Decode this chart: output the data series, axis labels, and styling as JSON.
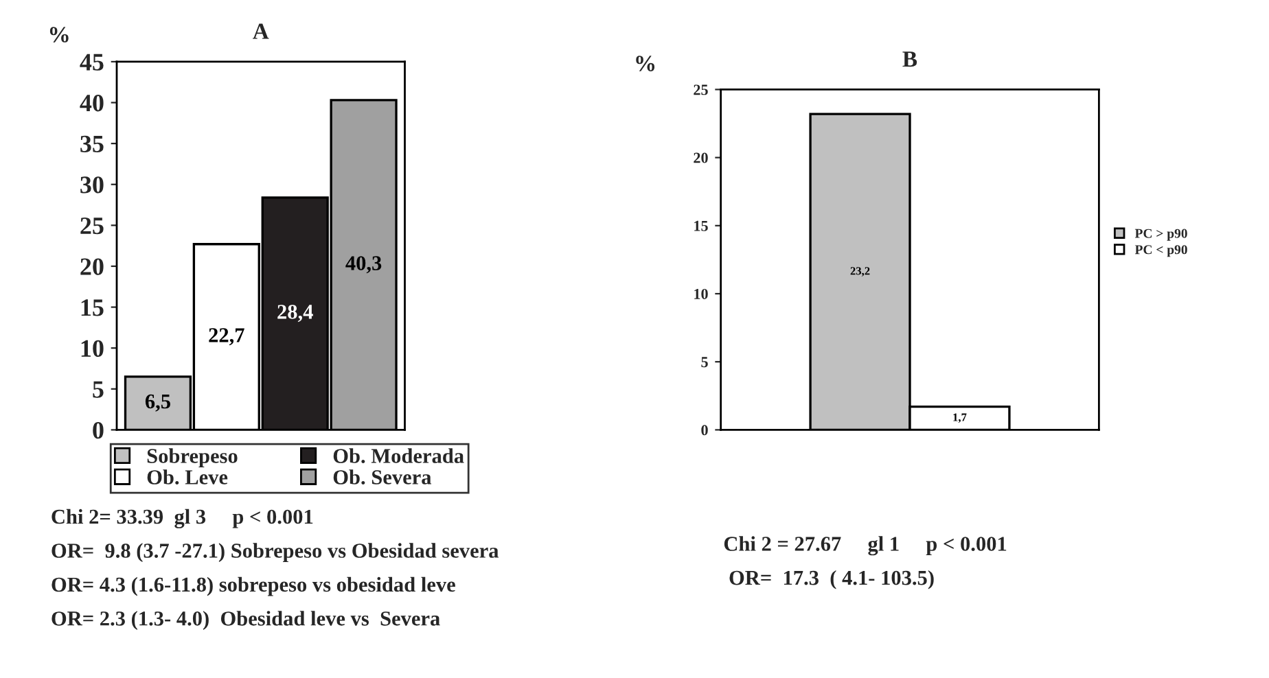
{
  "chart_data": [
    {
      "type": "bar",
      "title": "A",
      "ylabel": "%",
      "categories": [
        null,
        null,
        null,
        null
      ],
      "series": [
        {
          "name": "Sobrepeso",
          "color": "#c0c0c0",
          "values": [
            6.5,
            null,
            null,
            null
          ],
          "value_labels": [
            "6,5",
            null,
            null,
            null
          ]
        },
        {
          "name": "Ob. Leve",
          "color": "#ffffff",
          "values": [
            null,
            22.7,
            null,
            null
          ],
          "value_labels": [
            null,
            "22,7",
            null,
            null
          ]
        },
        {
          "name": "Ob. Moderada",
          "color": "#231f20",
          "values": [
            null,
            null,
            28.4,
            null
          ],
          "value_labels": [
            null,
            null,
            "28,4",
            null
          ]
        },
        {
          "name": "Ob. Severa",
          "color": "#a0a0a0",
          "values": [
            null,
            null,
            null,
            40.3
          ],
          "value_labels": [
            null,
            null,
            null,
            "40,3"
          ]
        }
      ],
      "ylim": [
        0,
        45
      ],
      "yticks": [
        0,
        5,
        10,
        15,
        20,
        25,
        30,
        35,
        40,
        45
      ],
      "legend": "bottom",
      "grid": false,
      "annotations": [
        "Chi 2= 33.39  gl 3     p < 0.001",
        "OR=  9.8 (3.7 -27.1) Sobrepeso vs Obesidad severa",
        "OR= 4.3 (1.6-11.8) sobrepeso vs obesidad leve",
        "OR= 2.3 (1.3- 4.0)  Obesidad leve vs  Severa"
      ]
    },
    {
      "type": "bar",
      "title": "B",
      "ylabel": "%",
      "categories": [
        null,
        null
      ],
      "series": [
        {
          "name": "PC > p90",
          "color": "#c0c0c0",
          "values": [
            23.2,
            null
          ],
          "value_labels": [
            "23,2",
            null
          ]
        },
        {
          "name": "PC < p90",
          "color": "#ffffff",
          "values": [
            null,
            1.7
          ],
          "value_labels": [
            null,
            "1,7"
          ]
        }
      ],
      "ylim": [
        0,
        25
      ],
      "yticks": [
        0,
        5,
        10,
        15,
        20,
        25
      ],
      "legend": "right",
      "grid": false,
      "annotations": [
        "Chi 2 = 27.67     gl 1     p < 0.001",
        " OR=  17.3  ( 4.1- 103.5)"
      ]
    }
  ]
}
